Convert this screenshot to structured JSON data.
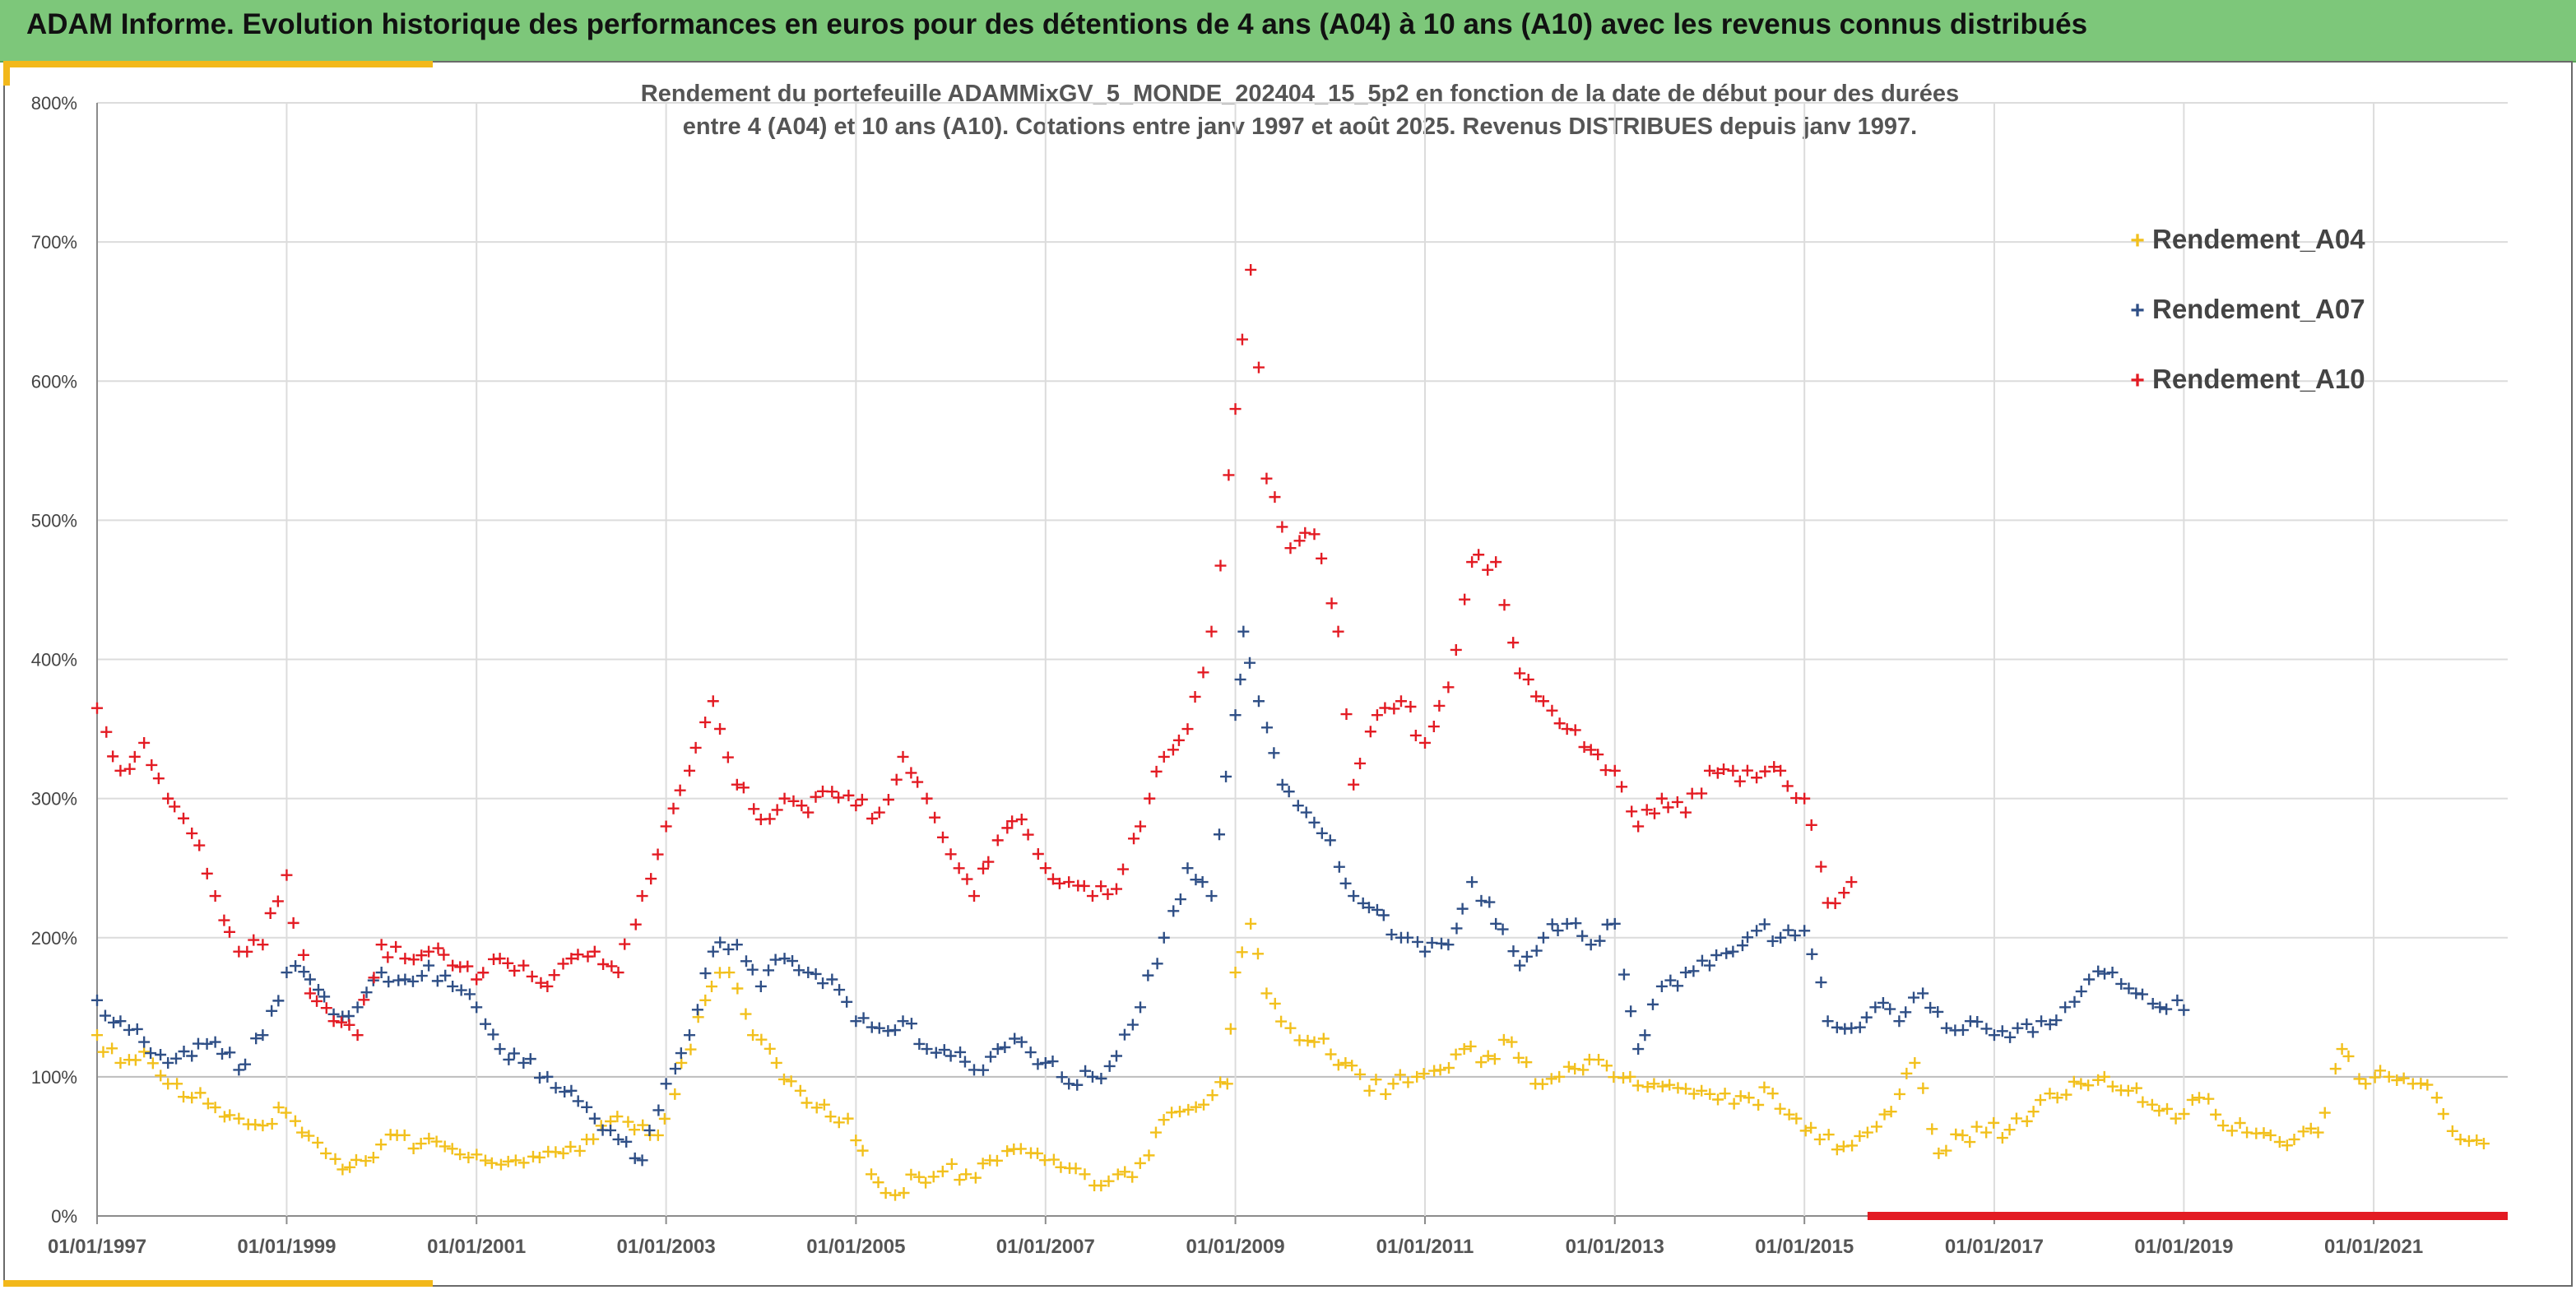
{
  "banner": {
    "title": "ADAM Informe. Evolution historique des performances en euros pour des détentions de 4 ans (A04) à 10 ans (A10) avec les revenus connus distribués"
  },
  "chart_data": {
    "type": "scatter",
    "title_lines": [
      "Rendement du portefeuille ADAMMixGV_5_MONDE_202404_15_5p2  en fonction de la date de début pour des durées",
      "entre 4 (A04) et 10 ans (A10). Cotations entre janv 1997 et août 2025. Revenus DISTRIBUES depuis janv 1997."
    ],
    "xlabel": "",
    "ylabel": "",
    "x_range": [
      "1997-01-01",
      "2022-06-01"
    ],
    "x_ticks": [
      "01/01/1997",
      "01/01/1999",
      "01/01/2001",
      "01/01/2003",
      "01/01/2005",
      "01/01/2007",
      "01/01/2009",
      "01/01/2011",
      "01/01/2013",
      "01/01/2015",
      "01/01/2017",
      "01/01/2019",
      "01/01/2021"
    ],
    "y_range": [
      0,
      800
    ],
    "y_ticks": [
      "0%",
      "100%",
      "200%",
      "300%",
      "400%",
      "500%",
      "600%",
      "700%",
      "800%"
    ],
    "grid": true,
    "legend_position": "top-right",
    "marker": "+",
    "series": [
      {
        "name": "Rendement_A04",
        "color": "#f2c01c",
        "points": [
          [
            "1997-01-01",
            130
          ],
          [
            "1997-04-01",
            110
          ],
          [
            "1997-07-01",
            118
          ],
          [
            "1997-10-01",
            95
          ],
          [
            "1998-01-01",
            85
          ],
          [
            "1998-04-01",
            78
          ],
          [
            "1998-07-01",
            70
          ],
          [
            "1998-10-01",
            65
          ],
          [
            "1998-12-01",
            78
          ],
          [
            "1999-03-01",
            60
          ],
          [
            "1999-06-01",
            45
          ],
          [
            "1999-09-01",
            35
          ],
          [
            "1999-12-01",
            42
          ],
          [
            "2000-03-01",
            58
          ],
          [
            "2000-06-01",
            52
          ],
          [
            "2000-09-01",
            50
          ],
          [
            "2000-12-01",
            42
          ],
          [
            "2001-03-01",
            38
          ],
          [
            "2001-06-01",
            40
          ],
          [
            "2001-09-01",
            42
          ],
          [
            "2001-12-01",
            45
          ],
          [
            "2002-03-01",
            55
          ],
          [
            "2002-06-01",
            68
          ],
          [
            "2002-09-01",
            62
          ],
          [
            "2002-12-01",
            58
          ],
          [
            "2003-03-01",
            110
          ],
          [
            "2003-06-01",
            155
          ],
          [
            "2003-09-01",
            175
          ],
          [
            "2003-12-01",
            130
          ],
          [
            "2004-03-01",
            110
          ],
          [
            "2004-06-01",
            90
          ],
          [
            "2004-09-01",
            80
          ],
          [
            "2004-12-01",
            70
          ],
          [
            "2005-03-01",
            30
          ],
          [
            "2005-06-01",
            15
          ],
          [
            "2005-09-01",
            28
          ],
          [
            "2005-12-01",
            32
          ],
          [
            "2006-03-01",
            30
          ],
          [
            "2006-06-01",
            40
          ],
          [
            "2006-09-01",
            48
          ],
          [
            "2006-12-01",
            45
          ],
          [
            "2007-03-01",
            35
          ],
          [
            "2007-06-01",
            30
          ],
          [
            "2007-09-01",
            25
          ],
          [
            "2007-12-01",
            28
          ],
          [
            "2008-03-01",
            60
          ],
          [
            "2008-06-01",
            75
          ],
          [
            "2008-09-01",
            80
          ],
          [
            "2008-12-01",
            95
          ],
          [
            "2009-01-01",
            175
          ],
          [
            "2009-03-01",
            210
          ],
          [
            "2009-05-01",
            160
          ],
          [
            "2009-08-01",
            135
          ],
          [
            "2009-11-01",
            125
          ],
          [
            "2010-03-01",
            110
          ],
          [
            "2010-06-01",
            90
          ],
          [
            "2010-09-01",
            95
          ],
          [
            "2010-12-01",
            100
          ],
          [
            "2011-03-01",
            105
          ],
          [
            "2011-06-01",
            120
          ],
          [
            "2011-09-01",
            115
          ],
          [
            "2011-12-01",
            125
          ],
          [
            "2012-03-01",
            95
          ],
          [
            "2012-06-01",
            100
          ],
          [
            "2012-09-01",
            105
          ],
          [
            "2012-12-01",
            108
          ],
          [
            "2013-03-01",
            100
          ],
          [
            "2013-06-01",
            95
          ],
          [
            "2013-09-01",
            92
          ],
          [
            "2013-12-01",
            90
          ],
          [
            "2014-03-01",
            88
          ],
          [
            "2014-06-01",
            85
          ],
          [
            "2014-09-01",
            88
          ],
          [
            "2014-12-01",
            70
          ],
          [
            "2015-03-01",
            55
          ],
          [
            "2015-06-01",
            50
          ],
          [
            "2015-09-01",
            60
          ],
          [
            "2015-12-01",
            75
          ],
          [
            "2016-03-01",
            110
          ],
          [
            "2016-06-01",
            45
          ],
          [
            "2016-09-01",
            58
          ],
          [
            "2016-12-01",
            60
          ],
          [
            "2017-03-01",
            62
          ],
          [
            "2017-06-01",
            75
          ],
          [
            "2017-09-01",
            85
          ],
          [
            "2017-12-01",
            95
          ],
          [
            "2018-03-01",
            100
          ],
          [
            "2018-06-01",
            90
          ],
          [
            "2018-09-01",
            80
          ],
          [
            "2018-12-01",
            70
          ],
          [
            "2019-03-01",
            85
          ],
          [
            "2019-06-01",
            65
          ],
          [
            "2019-09-01",
            60
          ],
          [
            "2019-12-01",
            58
          ],
          [
            "2020-03-01",
            55
          ],
          [
            "2020-06-01",
            60
          ],
          [
            "2020-09-01",
            120
          ],
          [
            "2020-12-01",
            95
          ],
          [
            "2021-03-01",
            100
          ],
          [
            "2021-06-01",
            95
          ],
          [
            "2021-09-01",
            85
          ],
          [
            "2021-12-01",
            55
          ],
          [
            "2022-03-01",
            52
          ]
        ]
      },
      {
        "name": "Rendement_A07",
        "color": "#2f4f86",
        "points": [
          [
            "1997-01-01",
            155
          ],
          [
            "1997-04-01",
            140
          ],
          [
            "1997-07-01",
            125
          ],
          [
            "1997-10-01",
            110
          ],
          [
            "1998-01-01",
            115
          ],
          [
            "1998-04-01",
            125
          ],
          [
            "1998-07-01",
            105
          ],
          [
            "1998-10-01",
            130
          ],
          [
            "1999-01-01",
            175
          ],
          [
            "1999-04-01",
            170
          ],
          [
            "1999-07-01",
            145
          ],
          [
            "1999-10-01",
            150
          ],
          [
            "2000-01-01",
            175
          ],
          [
            "2000-04-01",
            170
          ],
          [
            "2000-07-01",
            180
          ],
          [
            "2000-10-01",
            165
          ],
          [
            "2001-01-01",
            150
          ],
          [
            "2001-04-01",
            120
          ],
          [
            "2001-07-01",
            110
          ],
          [
            "2001-10-01",
            100
          ],
          [
            "2002-01-01",
            90
          ],
          [
            "2002-04-01",
            70
          ],
          [
            "2002-07-01",
            55
          ],
          [
            "2002-10-01",
            40
          ],
          [
            "2003-01-01",
            95
          ],
          [
            "2003-04-01",
            130
          ],
          [
            "2003-07-01",
            190
          ],
          [
            "2003-10-01",
            195
          ],
          [
            "2004-01-01",
            165
          ],
          [
            "2004-04-01",
            185
          ],
          [
            "2004-07-01",
            175
          ],
          [
            "2004-10-01",
            170
          ],
          [
            "2005-01-01",
            140
          ],
          [
            "2005-04-01",
            135
          ],
          [
            "2005-07-01",
            140
          ],
          [
            "2005-10-01",
            120
          ],
          [
            "2006-01-01",
            115
          ],
          [
            "2006-04-01",
            105
          ],
          [
            "2006-07-01",
            120
          ],
          [
            "2006-10-01",
            125
          ],
          [
            "2007-01-01",
            110
          ],
          [
            "2007-04-01",
            95
          ],
          [
            "2007-07-01",
            100
          ],
          [
            "2007-10-01",
            115
          ],
          [
            "2008-01-01",
            150
          ],
          [
            "2008-04-01",
            200
          ],
          [
            "2008-07-01",
            250
          ],
          [
            "2008-10-01",
            230
          ],
          [
            "2009-01-01",
            360
          ],
          [
            "2009-02-01",
            420
          ],
          [
            "2009-04-01",
            370
          ],
          [
            "2009-07-01",
            310
          ],
          [
            "2009-10-01",
            290
          ],
          [
            "2010-01-01",
            270
          ],
          [
            "2010-04-01",
            230
          ],
          [
            "2010-07-01",
            220
          ],
          [
            "2010-10-01",
            200
          ],
          [
            "2011-01-01",
            190
          ],
          [
            "2011-04-01",
            195
          ],
          [
            "2011-07-01",
            240
          ],
          [
            "2011-10-01",
            210
          ],
          [
            "2012-01-01",
            180
          ],
          [
            "2012-04-01",
            200
          ],
          [
            "2012-07-01",
            210
          ],
          [
            "2012-10-01",
            195
          ],
          [
            "2013-01-01",
            210
          ],
          [
            "2013-04-01",
            120
          ],
          [
            "2013-07-01",
            165
          ],
          [
            "2013-10-01",
            175
          ],
          [
            "2014-01-01",
            180
          ],
          [
            "2014-04-01",
            190
          ],
          [
            "2014-07-01",
            205
          ],
          [
            "2014-10-01",
            200
          ],
          [
            "2015-01-01",
            205
          ],
          [
            "2015-04-01",
            140
          ],
          [
            "2015-07-01",
            135
          ],
          [
            "2015-10-01",
            150
          ],
          [
            "2016-01-01",
            140
          ],
          [
            "2016-04-01",
            160
          ],
          [
            "2016-07-01",
            135
          ],
          [
            "2016-10-01",
            140
          ],
          [
            "2017-01-01",
            130
          ],
          [
            "2017-04-01",
            135
          ],
          [
            "2017-07-01",
            140
          ],
          [
            "2017-10-01",
            150
          ],
          [
            "2018-01-01",
            170
          ],
          [
            "2018-04-01",
            175
          ],
          [
            "2018-07-01",
            160
          ],
          [
            "2018-10-01",
            150
          ],
          [
            "2019-01-01",
            148
          ]
        ]
      },
      {
        "name": "Rendement_A10",
        "color": "#e31b23",
        "points": [
          [
            "1997-01-01",
            365
          ],
          [
            "1997-04-01",
            320
          ],
          [
            "1997-07-01",
            340
          ],
          [
            "1997-10-01",
            300
          ],
          [
            "1998-01-01",
            275
          ],
          [
            "1998-04-01",
            230
          ],
          [
            "1998-07-01",
            190
          ],
          [
            "1998-10-01",
            195
          ],
          [
            "1999-01-01",
            245
          ],
          [
            "1999-04-01",
            160
          ],
          [
            "1999-07-01",
            140
          ],
          [
            "1999-10-01",
            130
          ],
          [
            "2000-01-01",
            195
          ],
          [
            "2000-04-01",
            185
          ],
          [
            "2000-07-01",
            190
          ],
          [
            "2000-10-01",
            180
          ],
          [
            "2001-01-01",
            170
          ],
          [
            "2001-04-01",
            185
          ],
          [
            "2001-07-01",
            180
          ],
          [
            "2001-10-01",
            165
          ],
          [
            "2002-01-01",
            185
          ],
          [
            "2002-04-01",
            190
          ],
          [
            "2002-07-01",
            175
          ],
          [
            "2002-10-01",
            230
          ],
          [
            "2003-01-01",
            280
          ],
          [
            "2003-04-01",
            320
          ],
          [
            "2003-07-01",
            370
          ],
          [
            "2003-10-01",
            310
          ],
          [
            "2004-01-01",
            285
          ],
          [
            "2004-04-01",
            300
          ],
          [
            "2004-07-01",
            290
          ],
          [
            "2004-10-01",
            305
          ],
          [
            "2005-01-01",
            295
          ],
          [
            "2005-04-01",
            290
          ],
          [
            "2005-07-01",
            330
          ],
          [
            "2005-10-01",
            300
          ],
          [
            "2006-01-01",
            260
          ],
          [
            "2006-04-01",
            230
          ],
          [
            "2006-07-01",
            270
          ],
          [
            "2006-10-01",
            285
          ],
          [
            "2007-01-01",
            250
          ],
          [
            "2007-04-01",
            240
          ],
          [
            "2007-07-01",
            230
          ],
          [
            "2007-10-01",
            235
          ],
          [
            "2008-01-01",
            280
          ],
          [
            "2008-04-01",
            330
          ],
          [
            "2008-07-01",
            350
          ],
          [
            "2008-10-01",
            420
          ],
          [
            "2009-01-01",
            580
          ],
          [
            "2009-03-01",
            680
          ],
          [
            "2009-05-01",
            530
          ],
          [
            "2009-08-01",
            480
          ],
          [
            "2009-11-01",
            490
          ],
          [
            "2010-02-01",
            420
          ],
          [
            "2010-04-01",
            310
          ],
          [
            "2010-07-01",
            360
          ],
          [
            "2010-10-01",
            370
          ],
          [
            "2011-01-01",
            340
          ],
          [
            "2011-04-01",
            380
          ],
          [
            "2011-07-01",
            470
          ],
          [
            "2011-10-01",
            470
          ],
          [
            "2012-01-01",
            390
          ],
          [
            "2012-04-01",
            370
          ],
          [
            "2012-07-01",
            350
          ],
          [
            "2012-10-01",
            335
          ],
          [
            "2013-01-01",
            320
          ],
          [
            "2013-04-01",
            280
          ],
          [
            "2013-07-01",
            300
          ],
          [
            "2013-10-01",
            290
          ],
          [
            "2014-01-01",
            320
          ],
          [
            "2014-04-01",
            320
          ],
          [
            "2014-07-01",
            315
          ],
          [
            "2014-10-01",
            320
          ],
          [
            "2015-01-01",
            300
          ],
          [
            "2015-04-01",
            225
          ],
          [
            "2015-07-01",
            240
          ]
        ]
      },
      {
        "name": "",
        "color": "#e31b23",
        "style": "baseline-band",
        "points": [
          [
            "2015-09-01",
            0
          ],
          [
            "2022-06-01",
            0
          ]
        ]
      }
    ]
  }
}
